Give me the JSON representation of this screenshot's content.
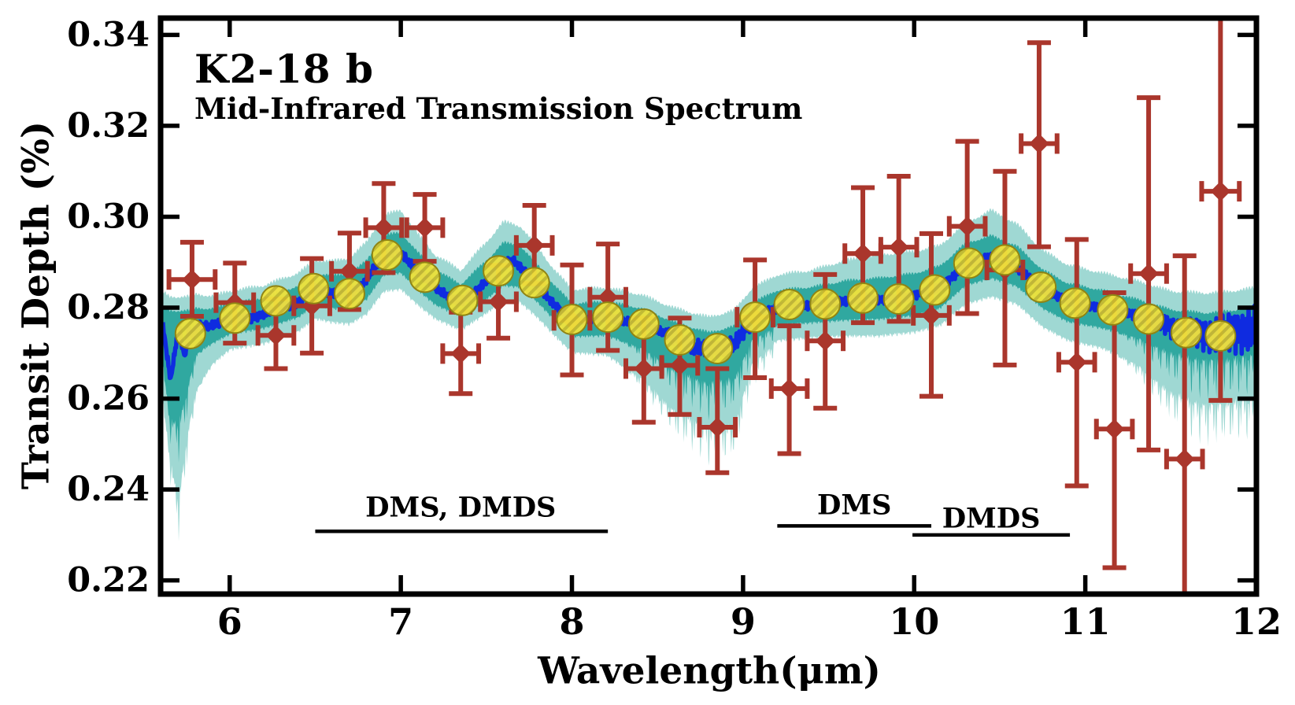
{
  "chart_data": {
    "type": "line",
    "title": "K2-18 b",
    "subtitle": "Mid-Infrared Transmission Spectrum",
    "xlabel": "Wavelength(μm)",
    "ylabel": "Transit Depth (%)",
    "xlim": [
      5.61,
      12.0
    ],
    "ylim": [
      0.217,
      0.3437
    ],
    "xticks": [
      6,
      7,
      8,
      9,
      10,
      11,
      12
    ],
    "xtick_labels": [
      "6",
      "7",
      "8",
      "9",
      "10",
      "11",
      "12"
    ],
    "yticks": [
      0.22,
      0.24,
      0.26,
      0.28,
      0.3,
      0.32,
      0.34
    ],
    "ytick_labels": [
      "0.22",
      "0.24",
      "0.26",
      "0.28",
      "0.30",
      "0.32",
      "0.34"
    ],
    "grid": false,
    "legend": "none",
    "colors": {
      "data_red": "#AA362C",
      "model_blue": "#0F2BE0",
      "band_inner": "#30A8A0",
      "band_outer": "#9FD8D3",
      "marker_yellow": "#F0E33C",
      "marker_stripe": "#C9BC2F",
      "marker_edge": "#8F8414",
      "axis": "#000000"
    },
    "annotations": [
      {
        "label": "DMS, DMDS",
        "text_x": 7.35,
        "text_y": 0.236,
        "line_x1": 6.5,
        "line_x2": 8.21,
        "line_y": 0.2308
      },
      {
        "label": "DMS",
        "text_x": 9.65,
        "text_y": 0.2366,
        "line_x1": 9.2,
        "line_x2": 10.1,
        "line_y": 0.232
      },
      {
        "label": "DMDS",
        "text_x": 10.45,
        "text_y": 0.2336,
        "line_x1": 9.99,
        "line_x2": 10.91,
        "line_y": 0.23
      }
    ],
    "series": [
      {
        "name": "observed-spectrum",
        "type": "errorbar",
        "marker": "diamond",
        "points": [
          [
            5.78,
            0.2862,
            0.135,
            0.0082,
            0.0081
          ],
          [
            6.03,
            0.2811,
            0.11,
            0.0087,
            0.0089
          ],
          [
            6.27,
            0.2739,
            0.105,
            0.008,
            0.0073
          ],
          [
            6.48,
            0.2804,
            0.105,
            0.0104,
            0.0104
          ],
          [
            6.7,
            0.288,
            0.105,
            0.0084,
            0.0084
          ],
          [
            6.9,
            0.2976,
            0.105,
            0.0097,
            0.0099
          ],
          [
            7.14,
            0.2976,
            0.105,
            0.0073,
            0.0074
          ],
          [
            7.35,
            0.2699,
            0.105,
            0.0091,
            0.0088
          ],
          [
            7.57,
            0.2813,
            0.105,
            0.008,
            0.008
          ],
          [
            7.78,
            0.2937,
            0.105,
            0.0088,
            0.0084
          ],
          [
            8.0,
            0.2772,
            0.105,
            0.0122,
            0.012
          ],
          [
            8.21,
            0.2823,
            0.105,
            0.0117,
            0.0117
          ],
          [
            8.42,
            0.2666,
            0.105,
            0.0111,
            0.0118
          ],
          [
            8.63,
            0.2673,
            0.105,
            0.0104,
            0.0108
          ],
          [
            8.85,
            0.2537,
            0.105,
            0.0129,
            0.01
          ],
          [
            9.07,
            0.2779,
            0.105,
            0.0126,
            0.0133
          ],
          [
            9.27,
            0.2622,
            0.105,
            0.0138,
            0.0143
          ],
          [
            9.48,
            0.2727,
            0.105,
            0.0146,
            0.0148
          ],
          [
            9.7,
            0.2919,
            0.105,
            0.0145,
            0.0152
          ],
          [
            9.91,
            0.2933,
            0.105,
            0.0156,
            0.0163
          ],
          [
            10.1,
            0.2783,
            0.105,
            0.018,
            0.0178
          ],
          [
            10.31,
            0.2979,
            0.105,
            0.0187,
            0.0192
          ],
          [
            10.53,
            0.2883,
            0.105,
            0.0217,
            0.0209
          ],
          [
            10.73,
            0.3161,
            0.105,
            0.0222,
            0.0227
          ],
          [
            10.95,
            0.268,
            0.105,
            0.027,
            0.0272
          ],
          [
            11.17,
            0.2533,
            0.105,
            0.03,
            0.0305
          ],
          [
            11.37,
            0.2875,
            0.105,
            0.0387,
            0.0388
          ],
          [
            11.58,
            0.2467,
            0.105,
            0.0447,
            0.046
          ],
          [
            11.79,
            0.3056,
            0.11,
            0.046,
            0.046
          ]
        ]
      },
      {
        "name": "model-binned",
        "type": "scatter",
        "points": [
          [
            5.77,
            0.2743
          ],
          [
            6.03,
            0.2777
          ],
          [
            6.27,
            0.2815
          ],
          [
            6.49,
            0.2842
          ],
          [
            6.7,
            0.2831
          ],
          [
            6.92,
            0.2916
          ],
          [
            7.14,
            0.2867
          ],
          [
            7.36,
            0.2816
          ],
          [
            7.57,
            0.2881
          ],
          [
            7.78,
            0.2855
          ],
          [
            8.0,
            0.2774
          ],
          [
            8.21,
            0.2779
          ],
          [
            8.42,
            0.2764
          ],
          [
            8.63,
            0.2729
          ],
          [
            8.85,
            0.271
          ],
          [
            9.07,
            0.2779
          ],
          [
            9.27,
            0.2807
          ],
          [
            9.48,
            0.2808
          ],
          [
            9.7,
            0.2821
          ],
          [
            9.91,
            0.2819
          ],
          [
            10.12,
            0.2839
          ],
          [
            10.32,
            0.2898
          ],
          [
            10.53,
            0.2905
          ],
          [
            10.74,
            0.2845
          ],
          [
            10.94,
            0.281
          ],
          [
            11.16,
            0.2795
          ],
          [
            11.37,
            0.2775
          ],
          [
            11.59,
            0.2745
          ],
          [
            11.79,
            0.2738
          ]
        ]
      },
      {
        "name": "model-median",
        "type": "line",
        "anchors": [
          [
            5.61,
            0.2762
          ],
          [
            5.63,
            0.2705
          ],
          [
            5.655,
            0.264
          ],
          [
            5.68,
            0.2705
          ],
          [
            5.705,
            0.2762
          ],
          [
            5.72,
            0.2718
          ],
          [
            5.74,
            0.2692
          ],
          [
            5.76,
            0.2748
          ],
          [
            5.78,
            0.274
          ],
          [
            5.82,
            0.2762
          ],
          [
            5.88,
            0.2758
          ],
          [
            5.95,
            0.2768
          ],
          [
            6.03,
            0.2777
          ],
          [
            6.12,
            0.2775
          ],
          [
            6.22,
            0.279
          ],
          [
            6.32,
            0.2802
          ],
          [
            6.4,
            0.2812
          ],
          [
            6.49,
            0.2842
          ],
          [
            6.56,
            0.2836
          ],
          [
            6.63,
            0.283
          ],
          [
            6.7,
            0.2831
          ],
          [
            6.78,
            0.2852
          ],
          [
            6.85,
            0.289
          ],
          [
            6.92,
            0.2916
          ],
          [
            6.97,
            0.2928
          ],
          [
            7.02,
            0.2912
          ],
          [
            7.06,
            0.2895
          ],
          [
            7.1,
            0.288
          ],
          [
            7.14,
            0.2867
          ],
          [
            7.22,
            0.2838
          ],
          [
            7.3,
            0.282
          ],
          [
            7.36,
            0.2816
          ],
          [
            7.44,
            0.2835
          ],
          [
            7.52,
            0.2868
          ],
          [
            7.6,
            0.2898
          ],
          [
            7.66,
            0.2903
          ],
          [
            7.72,
            0.2882
          ],
          [
            7.78,
            0.2855
          ],
          [
            7.86,
            0.2822
          ],
          [
            7.93,
            0.2795
          ],
          [
            8.0,
            0.2774
          ],
          [
            8.1,
            0.2776
          ],
          [
            8.21,
            0.2779
          ],
          [
            8.32,
            0.277
          ],
          [
            8.42,
            0.2764
          ],
          [
            8.52,
            0.2748
          ],
          [
            8.63,
            0.2729
          ],
          [
            8.72,
            0.2712
          ],
          [
            8.8,
            0.2708
          ],
          [
            8.88,
            0.2712
          ],
          [
            8.95,
            0.2718
          ],
          [
            9.0,
            0.2748
          ],
          [
            9.07,
            0.2779
          ],
          [
            9.17,
            0.2795
          ],
          [
            9.27,
            0.2807
          ],
          [
            9.38,
            0.2804
          ],
          [
            9.48,
            0.2808
          ],
          [
            9.58,
            0.2814
          ],
          [
            9.7,
            0.2821
          ],
          [
            9.8,
            0.2818
          ],
          [
            9.91,
            0.2819
          ],
          [
            10.02,
            0.283
          ],
          [
            10.12,
            0.2839
          ],
          [
            10.22,
            0.2866
          ],
          [
            10.32,
            0.2898
          ],
          [
            10.42,
            0.291
          ],
          [
            10.48,
            0.2912
          ],
          [
            10.53,
            0.2905
          ],
          [
            10.62,
            0.2882
          ],
          [
            10.74,
            0.2845
          ],
          [
            10.84,
            0.2824
          ],
          [
            10.94,
            0.281
          ],
          [
            11.05,
            0.2801
          ],
          [
            11.16,
            0.2795
          ],
          [
            11.26,
            0.2786
          ],
          [
            11.37,
            0.2775
          ],
          [
            11.48,
            0.276
          ],
          [
            11.59,
            0.2745
          ],
          [
            11.7,
            0.2741
          ],
          [
            11.79,
            0.2738
          ],
          [
            11.9,
            0.2748
          ],
          [
            12.0,
            0.2755
          ]
        ]
      },
      {
        "name": "confidence-bands",
        "type": "band",
        "x": [
          5.61,
          5.65,
          5.7,
          5.75,
          5.8,
          5.9,
          6.0,
          6.2,
          6.4,
          6.5,
          6.6,
          6.7,
          6.8,
          6.9,
          7.0,
          7.1,
          7.2,
          7.35,
          7.5,
          7.6,
          7.7,
          7.8,
          7.9,
          8.0,
          8.2,
          8.4,
          8.6,
          8.8,
          8.95,
          9.05,
          9.2,
          9.4,
          9.6,
          9.8,
          10.0,
          10.15,
          10.3,
          10.45,
          10.6,
          10.75,
          10.9,
          11.1,
          11.3,
          11.5,
          11.7,
          11.85,
          12.0
        ],
        "inner_up": [
          0.28,
          0.279,
          0.279,
          0.279,
          0.2795,
          0.2795,
          0.2805,
          0.2818,
          0.2845,
          0.2872,
          0.2868,
          0.287,
          0.29,
          0.2956,
          0.2962,
          0.2918,
          0.288,
          0.2848,
          0.29,
          0.294,
          0.2932,
          0.289,
          0.2845,
          0.2806,
          0.281,
          0.2796,
          0.2765,
          0.2742,
          0.2756,
          0.2806,
          0.2835,
          0.2842,
          0.2856,
          0.2862,
          0.2872,
          0.2888,
          0.2938,
          0.2955,
          0.2932,
          0.288,
          0.285,
          0.2835,
          0.2815,
          0.2792,
          0.2785,
          0.279,
          0.28
        ],
        "inner_lo": [
          0.268,
          0.256,
          0.255,
          0.262,
          0.27,
          0.2725,
          0.2745,
          0.2758,
          0.2782,
          0.281,
          0.2802,
          0.2798,
          0.2822,
          0.2875,
          0.288,
          0.2842,
          0.281,
          0.2784,
          0.2822,
          0.2852,
          0.2848,
          0.2815,
          0.2775,
          0.274,
          0.2742,
          0.2715,
          0.2668,
          0.264,
          0.265,
          0.2732,
          0.2765,
          0.277,
          0.2776,
          0.2778,
          0.2786,
          0.2802,
          0.2852,
          0.2868,
          0.285,
          0.2802,
          0.2772,
          0.2758,
          0.2738,
          0.2706,
          0.2692,
          0.2695,
          0.2702
        ],
        "outer_up": [
          0.283,
          0.282,
          0.282,
          0.282,
          0.2825,
          0.2822,
          0.2832,
          0.2845,
          0.2872,
          0.29,
          0.2898,
          0.2905,
          0.294,
          0.3,
          0.301,
          0.2958,
          0.2912,
          0.2878,
          0.294,
          0.2985,
          0.2975,
          0.2928,
          0.2878,
          0.2836,
          0.284,
          0.2825,
          0.2795,
          0.2775,
          0.279,
          0.2838,
          0.2868,
          0.2878,
          0.29,
          0.2912,
          0.292,
          0.2932,
          0.2982,
          0.301,
          0.298,
          0.2922,
          0.289,
          0.2872,
          0.2855,
          0.2832,
          0.2828,
          0.2832,
          0.284
        ],
        "outer_lo": [
          0.26,
          0.248,
          0.238,
          0.252,
          0.262,
          0.268,
          0.2712,
          0.2725,
          0.2752,
          0.278,
          0.2772,
          0.2768,
          0.279,
          0.284,
          0.2845,
          0.281,
          0.278,
          0.2755,
          0.2792,
          0.282,
          0.2815,
          0.2782,
          0.2742,
          0.2706,
          0.27,
          0.265,
          0.258,
          0.2545,
          0.2545,
          0.268,
          0.2732,
          0.2738,
          0.2742,
          0.2742,
          0.275,
          0.2765,
          0.2812,
          0.2828,
          0.2812,
          0.2762,
          0.2732,
          0.2715,
          0.268,
          0.262,
          0.2595,
          0.26,
          0.2608
        ]
      }
    ]
  }
}
